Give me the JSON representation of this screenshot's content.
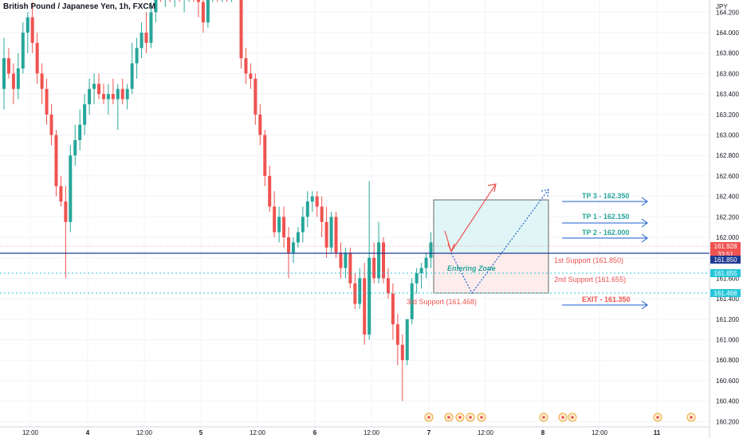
{
  "header": {
    "title": "British Pound / Japanese Yen, 1h, FXCM"
  },
  "axis": {
    "currency": "JPY",
    "price_ticks": [
      "164.200",
      "164.000",
      "163.800",
      "163.600",
      "163.400",
      "163.200",
      "163.000",
      "162.800",
      "162.600",
      "162.400",
      "162.200",
      "162.000",
      "161.800",
      "161.600",
      "161.400",
      "161.200",
      "161.000",
      "160.800",
      "160.600",
      "160.400",
      "160.200"
    ],
    "time_labels": [
      "12:00",
      "4",
      "12:00",
      "5",
      "12:00",
      "6",
      "12:00",
      "7",
      "12:00",
      "8",
      "12:00",
      "11"
    ]
  },
  "price_badges": [
    {
      "price": "161.928",
      "sub": "33:51",
      "color": "#ef5350"
    },
    {
      "price": "161.850",
      "color": "#1f3a93"
    },
    {
      "price": "161.655",
      "color": "#26c6da"
    },
    {
      "price": "161.468",
      "color": "#26c6da"
    }
  ],
  "annotations": {
    "entering_zone": "Entering Zone",
    "support1": "1st Support (161.850)",
    "support2": "2nd Support (161.655)",
    "support3": "3rd Support (161.468)",
    "tp3": "TP 3 - 162.350",
    "tp1": "TP 1 - 162.150",
    "tp2": "TP 2 - 162.000",
    "exit": "EXIT - 161.350"
  },
  "colors": {
    "up": "#26a69a",
    "down": "#ef5350",
    "navy": "#1f3a93",
    "cyan": "#26c6da",
    "tp": "#26a69a",
    "arrow": "#1e5fcc"
  },
  "chart_data": {
    "type": "candlestick",
    "ylim": [
      160.2,
      164.4
    ],
    "supports": [
      161.85,
      161.655,
      161.468
    ],
    "targets": [
      162.35,
      162.15,
      162.0
    ],
    "exit": 161.35,
    "candles": [
      {
        "o": 163.45,
        "h": 163.95,
        "l": 163.25,
        "c": 163.75
      },
      {
        "o": 163.75,
        "h": 163.85,
        "l": 163.55,
        "c": 163.6
      },
      {
        "o": 163.6,
        "h": 163.7,
        "l": 163.3,
        "c": 163.45
      },
      {
        "o": 163.45,
        "h": 163.8,
        "l": 163.35,
        "c": 163.65
      },
      {
        "o": 163.65,
        "h": 164.1,
        "l": 163.6,
        "c": 164.0
      },
      {
        "o": 164.0,
        "h": 164.2,
        "l": 163.8,
        "c": 164.15
      },
      {
        "o": 164.15,
        "h": 164.3,
        "l": 163.8,
        "c": 163.9
      },
      {
        "o": 163.9,
        "h": 164.0,
        "l": 163.5,
        "c": 163.6
      },
      {
        "o": 163.6,
        "h": 163.7,
        "l": 163.3,
        "c": 163.45
      },
      {
        "o": 163.45,
        "h": 163.55,
        "l": 163.1,
        "c": 163.2
      },
      {
        "o": 163.2,
        "h": 163.3,
        "l": 162.9,
        "c": 163.0
      },
      {
        "o": 163.0,
        "h": 163.05,
        "l": 162.4,
        "c": 162.5
      },
      {
        "o": 162.5,
        "h": 162.6,
        "l": 162.3,
        "c": 162.35
      },
      {
        "o": 162.35,
        "h": 162.5,
        "l": 161.6,
        "c": 162.15
      },
      {
        "o": 162.15,
        "h": 162.9,
        "l": 162.05,
        "c": 162.8
      },
      {
        "o": 162.8,
        "h": 163.1,
        "l": 162.7,
        "c": 162.95
      },
      {
        "o": 162.95,
        "h": 163.25,
        "l": 162.85,
        "c": 163.1
      },
      {
        "o": 163.1,
        "h": 163.4,
        "l": 163.0,
        "c": 163.3
      },
      {
        "o": 163.3,
        "h": 163.55,
        "l": 163.2,
        "c": 163.45
      },
      {
        "o": 163.45,
        "h": 163.6,
        "l": 163.3,
        "c": 163.5
      },
      {
        "o": 163.5,
        "h": 163.6,
        "l": 163.35,
        "c": 163.4
      },
      {
        "o": 163.4,
        "h": 163.5,
        "l": 163.3,
        "c": 163.35
      },
      {
        "o": 163.35,
        "h": 163.5,
        "l": 163.2,
        "c": 163.4
      },
      {
        "o": 163.4,
        "h": 163.55,
        "l": 163.3,
        "c": 163.35
      },
      {
        "o": 163.35,
        "h": 163.5,
        "l": 163.05,
        "c": 163.45
      },
      {
        "o": 163.45,
        "h": 163.55,
        "l": 163.3,
        "c": 163.35
      },
      {
        "o": 163.35,
        "h": 163.5,
        "l": 163.25,
        "c": 163.45
      },
      {
        "o": 163.45,
        "h": 163.9,
        "l": 163.4,
        "c": 163.7
      },
      {
        "o": 163.7,
        "h": 163.95,
        "l": 163.55,
        "c": 163.85
      },
      {
        "o": 163.85,
        "h": 164.1,
        "l": 163.75,
        "c": 164.0
      },
      {
        "o": 164.0,
        "h": 164.2,
        "l": 163.8,
        "c": 163.9
      },
      {
        "o": 163.9,
        "h": 164.3,
        "l": 163.85,
        "c": 164.2
      },
      {
        "o": 164.2,
        "h": 164.6,
        "l": 164.1,
        "c": 164.5
      },
      {
        "o": 164.5,
        "h": 164.7,
        "l": 164.3,
        "c": 164.4
      },
      {
        "o": 164.4,
        "h": 164.6,
        "l": 164.25,
        "c": 164.55
      },
      {
        "o": 164.55,
        "h": 164.7,
        "l": 164.3,
        "c": 164.35
      },
      {
        "o": 164.35,
        "h": 164.55,
        "l": 164.25,
        "c": 164.45
      },
      {
        "o": 164.45,
        "h": 164.6,
        "l": 164.3,
        "c": 164.35
      },
      {
        "o": 164.35,
        "h": 164.5,
        "l": 164.2,
        "c": 164.4
      },
      {
        "o": 164.4,
        "h": 164.55,
        "l": 164.3,
        "c": 164.45
      },
      {
        "o": 164.45,
        "h": 164.6,
        "l": 164.3,
        "c": 164.35
      },
      {
        "o": 164.35,
        "h": 164.5,
        "l": 164.15,
        "c": 164.3
      },
      {
        "o": 164.3,
        "h": 164.5,
        "l": 164.0,
        "c": 164.1
      },
      {
        "o": 164.1,
        "h": 164.45,
        "l": 164.05,
        "c": 164.4
      },
      {
        "o": 164.4,
        "h": 164.6,
        "l": 164.3,
        "c": 164.5
      },
      {
        "o": 164.5,
        "h": 164.6,
        "l": 164.3,
        "c": 164.4
      },
      {
        "o": 164.4,
        "h": 164.5,
        "l": 164.3,
        "c": 164.45
      },
      {
        "o": 164.45,
        "h": 164.5,
        "l": 164.3,
        "c": 164.4
      },
      {
        "o": 164.4,
        "h": 164.5,
        "l": 164.3,
        "c": 164.45
      },
      {
        "o": 164.45,
        "h": 164.5,
        "l": 164.35,
        "c": 164.4
      },
      {
        "o": 164.4,
        "h": 164.5,
        "l": 163.65,
        "c": 163.75
      },
      {
        "o": 163.75,
        "h": 163.85,
        "l": 163.5,
        "c": 163.6
      },
      {
        "o": 163.6,
        "h": 163.7,
        "l": 163.45,
        "c": 163.55
      },
      {
        "o": 163.55,
        "h": 163.6,
        "l": 163.1,
        "c": 163.2
      },
      {
        "o": 163.2,
        "h": 163.3,
        "l": 162.9,
        "c": 163.0
      },
      {
        "o": 163.0,
        "h": 163.05,
        "l": 162.5,
        "c": 162.6
      },
      {
        "o": 162.6,
        "h": 162.7,
        "l": 162.25,
        "c": 162.3
      },
      {
        "o": 162.3,
        "h": 162.45,
        "l": 162.0,
        "c": 162.05
      },
      {
        "o": 162.05,
        "h": 162.3,
        "l": 161.95,
        "c": 162.2
      },
      {
        "o": 162.2,
        "h": 162.3,
        "l": 161.9,
        "c": 162.0
      },
      {
        "o": 162.0,
        "h": 162.1,
        "l": 161.6,
        "c": 161.85
      },
      {
        "o": 161.85,
        "h": 162.0,
        "l": 161.75,
        "c": 161.95
      },
      {
        "o": 161.95,
        "h": 162.1,
        "l": 161.9,
        "c": 162.05
      },
      {
        "o": 162.05,
        "h": 162.3,
        "l": 161.95,
        "c": 162.2
      },
      {
        "o": 162.2,
        "h": 162.45,
        "l": 162.1,
        "c": 162.35
      },
      {
        "o": 162.35,
        "h": 162.45,
        "l": 162.25,
        "c": 162.4
      },
      {
        "o": 162.4,
        "h": 162.45,
        "l": 162.2,
        "c": 162.3
      },
      {
        "o": 162.3,
        "h": 162.4,
        "l": 162.0,
        "c": 162.15
      },
      {
        "o": 162.15,
        "h": 162.3,
        "l": 161.8,
        "c": 161.9
      },
      {
        "o": 161.9,
        "h": 162.25,
        "l": 161.85,
        "c": 162.2
      },
      {
        "o": 162.2,
        "h": 162.25,
        "l": 161.8,
        "c": 161.85
      },
      {
        "o": 161.85,
        "h": 161.95,
        "l": 161.6,
        "c": 161.7
      },
      {
        "o": 161.7,
        "h": 161.9,
        "l": 161.6,
        "c": 161.85
      },
      {
        "o": 161.85,
        "h": 161.9,
        "l": 161.5,
        "c": 161.55
      },
      {
        "o": 161.55,
        "h": 161.65,
        "l": 161.3,
        "c": 161.35
      },
      {
        "o": 161.35,
        "h": 161.7,
        "l": 161.3,
        "c": 161.6
      },
      {
        "o": 161.6,
        "h": 161.75,
        "l": 160.95,
        "c": 161.05
      },
      {
        "o": 161.05,
        "h": 162.55,
        "l": 161.0,
        "c": 161.8
      },
      {
        "o": 161.8,
        "h": 161.95,
        "l": 161.55,
        "c": 161.6
      },
      {
        "o": 161.6,
        "h": 162.15,
        "l": 161.55,
        "c": 161.95
      },
      {
        "o": 161.95,
        "h": 162.0,
        "l": 161.55,
        "c": 161.6
      },
      {
        "o": 161.6,
        "h": 161.7,
        "l": 161.4,
        "c": 161.45
      },
      {
        "o": 161.45,
        "h": 161.55,
        "l": 161.0,
        "c": 161.15
      },
      {
        "o": 161.15,
        "h": 161.25,
        "l": 160.75,
        "c": 160.95
      },
      {
        "o": 160.95,
        "h": 161.05,
        "l": 160.4,
        "c": 160.8
      },
      {
        "o": 160.8,
        "h": 161.2,
        "l": 160.75,
        "c": 161.2
      },
      {
        "o": 161.2,
        "h": 161.6,
        "l": 161.15,
        "c": 161.55
      },
      {
        "o": 161.55,
        "h": 161.7,
        "l": 161.45,
        "c": 161.65
      },
      {
        "o": 161.65,
        "h": 161.75,
        "l": 161.5,
        "c": 161.7
      },
      {
        "o": 161.7,
        "h": 161.85,
        "l": 161.6,
        "c": 161.8
      },
      {
        "o": 161.8,
        "h": 162.05,
        "l": 161.7,
        "c": 161.95
      },
      {
        "o": 161.95,
        "h": 162.2,
        "l": 161.85,
        "c": 162.1
      },
      {
        "o": 162.1,
        "h": 162.25,
        "l": 161.95,
        "c": 162.0
      },
      {
        "o": 162.0,
        "h": 162.05,
        "l": 161.9,
        "c": 161.95
      },
      {
        "o": 161.95,
        "h": 162.0,
        "l": 161.88,
        "c": 161.928
      }
    ]
  }
}
